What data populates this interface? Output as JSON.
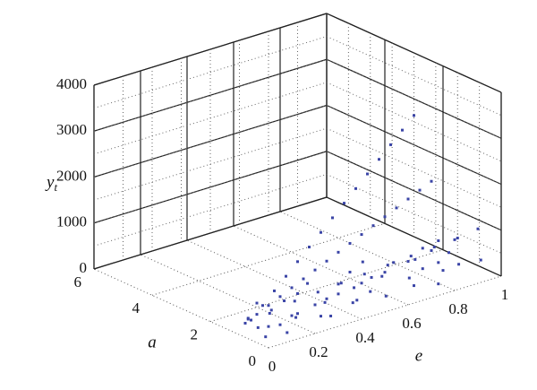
{
  "chart_data": {
    "type": "scatter3d",
    "xlabel": "e",
    "ylabel": "a",
    "zlabel": "y",
    "zlabel_subscript": "t",
    "xlim": [
      0,
      1
    ],
    "xticks": [
      0,
      0.2,
      0.4,
      0.6,
      0.8,
      1
    ],
    "ylim": [
      0,
      6
    ],
    "yticks": [
      0,
      2,
      4,
      6
    ],
    "zlim": [
      0,
      4000
    ],
    "zticks": [
      0,
      1000,
      2000,
      3000,
      4000
    ],
    "grid": true,
    "series": [
      {
        "color": "#3a44a6",
        "x": [
          0.05,
          0.1,
          0.15,
          0.2,
          0.25,
          0.3,
          0.35,
          0.4,
          0.45,
          0.5,
          0.55,
          0.6,
          0.65,
          0.7,
          0.75
        ],
        "y": [
          1,
          1,
          1,
          1,
          1,
          1,
          1,
          1,
          1,
          1,
          1,
          1,
          1,
          1,
          1
        ],
        "z": [
          240,
          480,
          720,
          960,
          1200,
          1440,
          1680,
          1920,
          2160,
          2400,
          2640,
          2880,
          3120,
          3360,
          3600
        ]
      },
      {
        "color": "#3a44a6",
        "x": [
          0.05,
          0.1,
          0.15,
          0.2,
          0.25,
          0.3,
          0.35,
          0.4,
          0.45,
          0.5,
          0.55,
          0.6,
          0.65,
          0.7,
          0.75,
          0.8,
          0.85
        ],
        "y": [
          1.2,
          1.2,
          1.2,
          1.2,
          1.2,
          1.2,
          1.2,
          1.2,
          1.2,
          1.2,
          1.2,
          1.2,
          1.2,
          1.2,
          1.2,
          1.2,
          1.2
        ],
        "z": [
          115,
          230,
          345,
          460,
          575,
          690,
          805,
          920,
          1035,
          1150,
          1265,
          1380,
          1495,
          1610,
          1725,
          1840,
          1955
        ]
      },
      {
        "color": "#3a44a6",
        "x": [
          0.1,
          0.2,
          0.3,
          0.4,
          0.5,
          0.6,
          0.7,
          0.8,
          0.9,
          1
        ],
        "y": [
          0.8,
          0.8,
          0.8,
          0.8,
          0.8,
          0.8,
          0.8,
          0.8,
          0.8,
          0.8
        ],
        "z": [
          80,
          160,
          240,
          320,
          400,
          480,
          560,
          640,
          720,
          800
        ]
      },
      {
        "color": "#3a44a6",
        "x": [
          0.1,
          0.2,
          0.3,
          0.4,
          0.5,
          0.6,
          0.7,
          0.8,
          0.9,
          1
        ],
        "y": [
          1.5,
          1.5,
          1.5,
          1.5,
          1.5,
          1.5,
          1.5,
          1.5,
          1.5,
          1.5
        ],
        "z": [
          40,
          80,
          120,
          160,
          200,
          240,
          280,
          320,
          360,
          400
        ]
      },
      {
        "color": "#3a44a6",
        "x": [
          0.05,
          0.1,
          0.15,
          0.2,
          0.25,
          0.3,
          0.35,
          0.4,
          0.45,
          0.5,
          0.55,
          0.6,
          0.65,
          0.7,
          0.75,
          0.8,
          0.85,
          0.9,
          0.95,
          1
        ],
        "y": [
          0.5,
          1.5,
          0.8,
          2,
          1,
          0.6,
          1.8,
          1.2,
          0.7,
          1.6,
          0.9,
          2,
          1.3,
          0.6,
          1.7,
          1.1,
          0.8,
          1.9,
          1.4,
          0.7
        ],
        "z": [
          20,
          60,
          40,
          90,
          70,
          50,
          120,
          100,
          80,
          150,
          110,
          140,
          170,
          90,
          200,
          160,
          130,
          220,
          190,
          150
        ]
      },
      {
        "color": "#3a44a6",
        "x": [
          0.08,
          0.13,
          0.18,
          0.23,
          0.28,
          0.33,
          0.38,
          0.43,
          0.48,
          0.53,
          0.58,
          0.63,
          0.68,
          0.73,
          0.78,
          0.83,
          0.88,
          0.93,
          0.98
        ],
        "y": [
          1,
          0.4,
          1.4,
          0.9,
          1.7,
          0.5,
          1.1,
          2.1,
          0.8,
          1.3,
          0.6,
          1.5,
          2.2,
          1,
          0.4,
          1.6,
          1.2,
          0.9,
          2
        ],
        "z": [
          30,
          15,
          70,
          45,
          100,
          35,
          80,
          130,
          60,
          110,
          50,
          120,
          180,
          95,
          60,
          170,
          140,
          110,
          230
        ]
      }
    ]
  }
}
